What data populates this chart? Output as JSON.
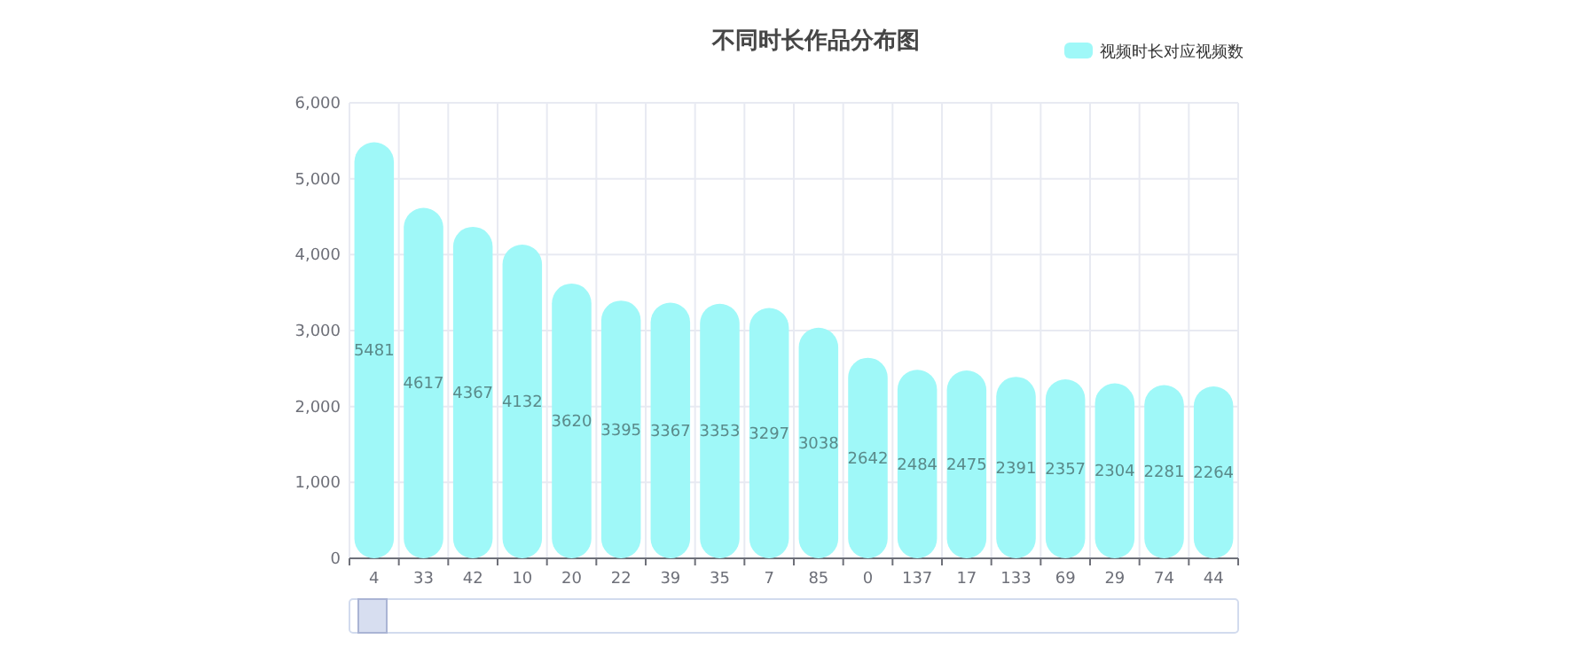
{
  "chart_data": {
    "type": "bar",
    "title": "不同时长作品分布图",
    "categories": [
      "4",
      "33",
      "42",
      "10",
      "20",
      "22",
      "39",
      "35",
      "7",
      "85",
      "0",
      "137",
      "17",
      "133",
      "69",
      "29",
      "74",
      "44"
    ],
    "series": [
      {
        "name": "视频时长对应视频数",
        "color": "#9ff8f8",
        "values": [
          5481,
          4617,
          4367,
          4132,
          3620,
          3395,
          3367,
          3353,
          3297,
          3038,
          2642,
          2484,
          2475,
          2391,
          2357,
          2304,
          2281,
          2264
        ]
      }
    ],
    "ylim": [
      0,
      6000
    ],
    "yticks": [
      0,
      {
        "value": 1000,
        "label": "1,000"
      },
      {
        "value": 2000,
        "label": "2,000"
      },
      {
        "value": 3000,
        "label": "3,000"
      },
      {
        "value": 4000,
        "label": "4,000"
      },
      {
        "value": 5000,
        "label": "5,000"
      },
      {
        "value": 6000,
        "label": "6,000"
      }
    ],
    "grid": true,
    "legend": "top right",
    "data_labels": true
  }
}
